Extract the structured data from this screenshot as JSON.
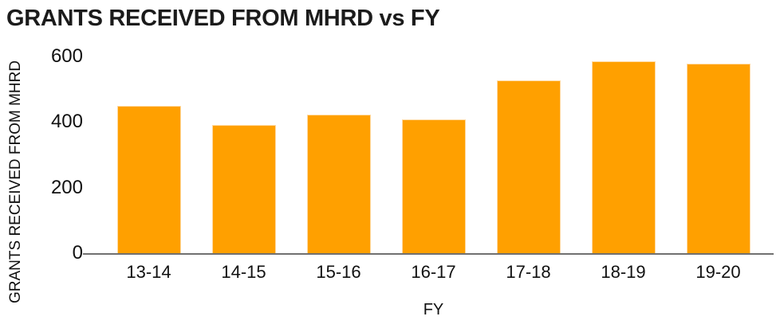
{
  "chart_data": {
    "type": "bar",
    "title": "GRANTS RECEIVED FROM MHRD vs FY",
    "xlabel": "FY",
    "ylabel": "GRANTS RECEIVED FROM MHRD",
    "categories": [
      "13-14",
      "14-15",
      "15-16",
      "16-17",
      "17-18",
      "18-19",
      "19-20"
    ],
    "values": [
      450,
      392,
      422,
      409,
      527,
      585,
      578
    ],
    "ylim": [
      0,
      600
    ],
    "yticks": [
      0,
      200,
      400,
      600
    ],
    "grid": false,
    "legend_position": "none",
    "bar_color": "#FFA000",
    "axis_line_color": "#707070",
    "text_color": "#111111"
  }
}
